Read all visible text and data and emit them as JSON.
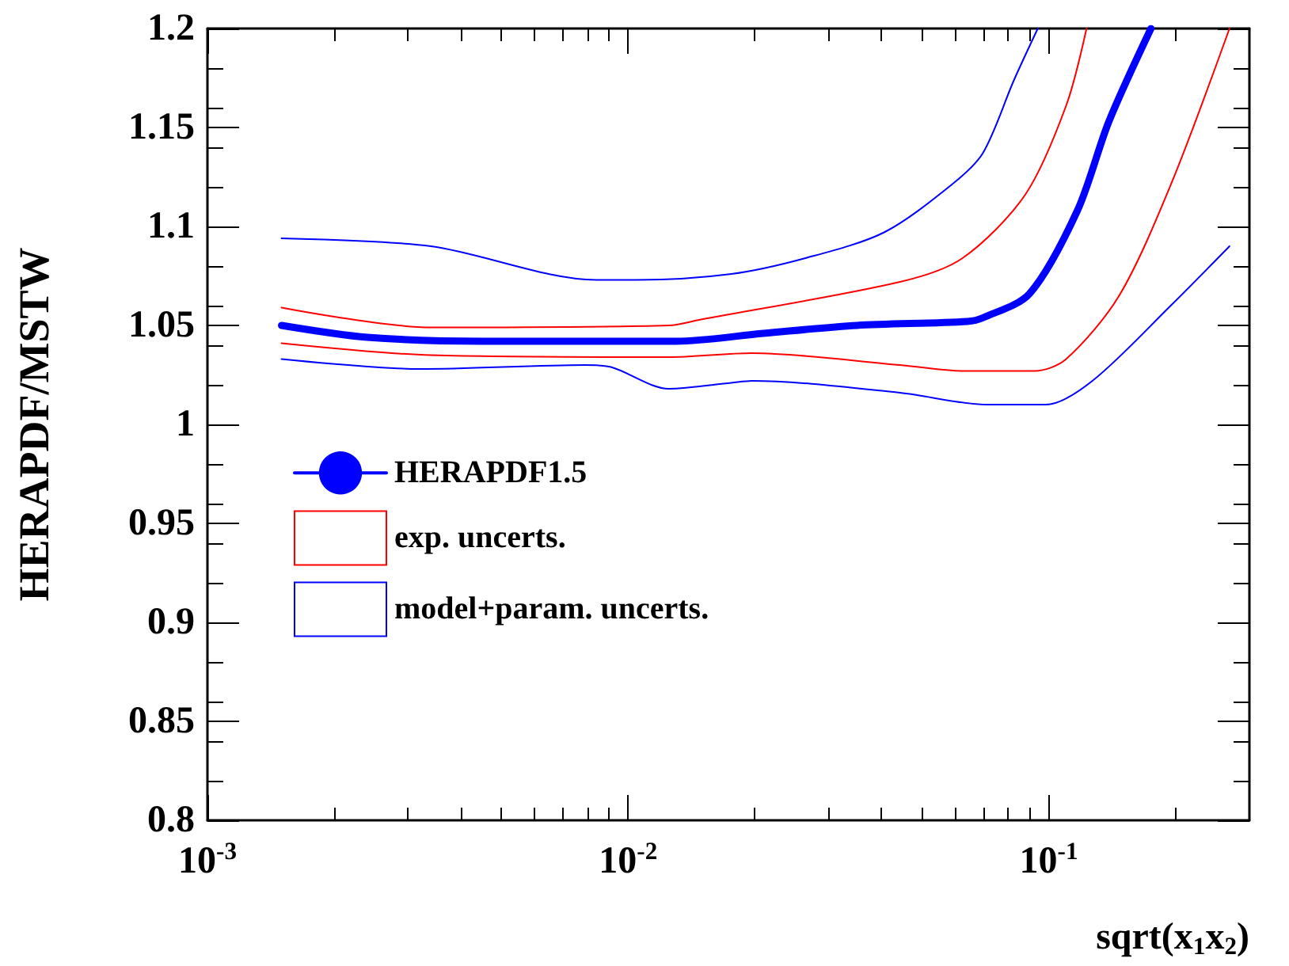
{
  "chart_data": {
    "type": "line",
    "xlabel": "sqrt(x$_{1}$x$_{2}$)",
    "ylabel": "HERAPDF/MSTW",
    "log": "x",
    "xlim": [
      0.001,
      0.3
    ],
    "xticks": [
      {
        "value": 0.001,
        "label": "10$^{-3}$"
      },
      {
        "value": 0.01,
        "label": "10$^{-2}$"
      },
      {
        "value": 0.1,
        "label": "10$^{-1}$"
      }
    ],
    "ylim": [
      0.8,
      1.2
    ],
    "yticks": [
      0.8,
      0.85,
      0.9,
      0.95,
      1,
      1.05,
      1.1,
      1.15,
      1.2
    ],
    "legend": "left",
    "grid": false,
    "marker": "none",
    "line_style": "solid",
    "series": [
      {
        "name": "HERAPDF1.5",
        "color": "#0000ff",
        "x": [
          0.0015,
          0.0024,
          0.0045,
          0.013,
          0.021,
          0.035,
          0.064,
          0.07,
          0.09,
          0.117,
          0.139,
          0.175
        ],
        "values": [
          1.05,
          1.044,
          1.042,
          1.042,
          1.046,
          1.05,
          1.052,
          1.054,
          1.066,
          1.108,
          1.153,
          1.2
        ]
      },
      {
        "name": "exp. uncerts.",
        "color": "#ff0000",
        "x": [
          0.0015,
          0.0034,
          0.0125,
          0.0149,
          0.0443,
          0.0624,
          0.0879,
          0.11,
          0.123
        ],
        "values": [
          1.059,
          1.049,
          1.05,
          1.053,
          1.072,
          1.084,
          1.116,
          1.161,
          1.2
        ]
      },
      {
        "color": "#ff0000",
        "x": [
          0.0015,
          0.0034,
          0.0125,
          0.0197,
          0.0443,
          0.0624,
          0.0925,
          0.11,
          0.147,
          0.195,
          0.269
        ],
        "values": [
          1.041,
          1.035,
          1.034,
          1.036,
          1.03,
          1.027,
          1.027,
          1.033,
          1.065,
          1.121,
          1.2
        ]
      },
      {
        "name": "model+param. uncerts.",
        "color": "#0000ff",
        "x": [
          0.0015,
          0.0034,
          0.0084,
          0.0105,
          0.0176,
          0.0264,
          0.0406,
          0.0587,
          0.0697,
          0.0827,
          0.0942
        ],
        "values": [
          1.094,
          1.09,
          1.073,
          1.073,
          1.076,
          1.084,
          1.097,
          1.121,
          1.137,
          1.174,
          1.2
        ]
      },
      {
        "color": "#0000ff",
        "x": [
          0.0015,
          0.0032,
          0.0079,
          0.0091,
          0.0125,
          0.0176,
          0.0197,
          0.0443,
          0.0715,
          0.0984,
          0.127,
          0.195,
          0.269
        ],
        "values": [
          1.033,
          1.028,
          1.03,
          1.029,
          1.018,
          1.021,
          1.022,
          1.016,
          1.01,
          1.01,
          1.022,
          1.06,
          1.09
        ]
      }
    ]
  }
}
